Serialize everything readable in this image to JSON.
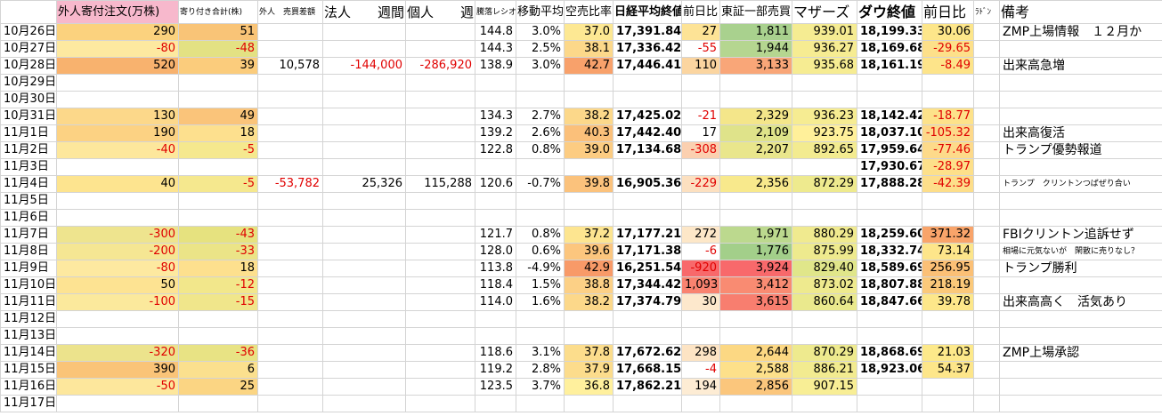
{
  "table": {
    "header": [
      null,
      "外人寄付注文(万株)",
      "寄り付き合計(株)",
      "外人　売買差額",
      "法人　　週間",
      "個人　　週間",
      "騰落レシオ",
      "移動平均",
      "空売比率",
      "日経平均終値",
      "前日比",
      "東証一部売買",
      "マザーズ",
      "ダウ終値",
      "前日比",
      "ﾗﾄﾞﾝ",
      "備考"
    ],
    "rows": [
      {
        "cells": [
          "10月26日",
          "290",
          "51",
          null,
          null,
          null,
          "144.8",
          "3.0%",
          "37.0",
          "17,391.84",
          "27",
          "1,811",
          "939.01",
          "18,199.33",
          "30.06",
          null,
          "ZMP上場情報　１２月か"
        ],
        "fills": {
          "1": "#fbd27e",
          "2": "#f9c477",
          "8": "#fde893",
          "10": "#fde396",
          "11": "#a9d18e",
          "12": "#f5ec92",
          "14": "#fde68a"
        }
      },
      {
        "cells": [
          "10月27日",
          "-80",
          "-48",
          null,
          null,
          null,
          "144.3",
          "2.5%",
          "38.1",
          "17,336.42",
          "-55",
          "1,944",
          "936.27",
          "18,169.68",
          "-29.65",
          null,
          null
        ],
        "fills": {
          "1": "#fde9a0",
          "2": "#e3e183",
          "8": "#fcd88a",
          "11": "#b5d690",
          "12": "#f6ec92",
          "14": "#fde08a"
        }
      },
      {
        "cells": [
          "10月28日",
          "520",
          "39",
          "10,578",
          "-144,000",
          "-286,920",
          "138.9",
          "3.0%",
          "42.7",
          "17,446.41",
          "110",
          "3,133",
          "935.68",
          "18,161.19",
          "-8.49",
          null,
          "出来高急増"
        ],
        "fills": {
          "1": "#f8b26e",
          "2": "#fbcc7c",
          "8": "#f8a16b",
          "10": "#fbd5a0",
          "11": "#f9a678",
          "12": "#f6ec92",
          "14": "#fde48a"
        }
      },
      {
        "cells": [
          "10月29日",
          null,
          null,
          null,
          null,
          null,
          null,
          null,
          null,
          null,
          null,
          null,
          null,
          null,
          null,
          null,
          null
        ],
        "fills": {}
      },
      {
        "cells": [
          "10月30日",
          null,
          null,
          null,
          null,
          null,
          null,
          null,
          null,
          null,
          null,
          null,
          null,
          null,
          null,
          null,
          null
        ],
        "fills": {}
      },
      {
        "cells": [
          "10月31日",
          "130",
          "49",
          null,
          null,
          null,
          "134.3",
          "2.7%",
          "38.2",
          "17,425.02",
          "-21",
          "2,329",
          "936.23",
          "18,142.42",
          "-18.77",
          null,
          null
        ],
        "fills": {
          "1": "#fcd88a",
          "2": "#fac47a",
          "8": "#fcd88a",
          "11": "#f4e68a",
          "12": "#f6ec92",
          "14": "#fde28a"
        }
      },
      {
        "cells": [
          "11月1日",
          "190",
          "18",
          null,
          null,
          null,
          "139.2",
          "2.6%",
          "40.3",
          "17,442.40",
          "17",
          "2,109",
          "923.75",
          "18,037.10",
          "-105.32",
          null,
          "出来高復活"
        ],
        "fills": {
          "1": "#fcd283",
          "2": "#fde08e",
          "8": "#fbc07a",
          "11": "#dfe38a",
          "12": "#fff09a",
          "14": "#fdd98a"
        }
      },
      {
        "cells": [
          "11月2日",
          "-40",
          "-5",
          null,
          null,
          null,
          "122.8",
          "0.8%",
          "39.0",
          "17,134.68",
          "-308",
          "2,207",
          "892.65",
          "17,959.64",
          "-77.46",
          null,
          "トランプ優勢報道"
        ],
        "fills": {
          "1": "#fde79c",
          "2": "#f5e88e",
          "8": "#fccc82",
          "10": "#fbd0b0",
          "11": "#e9e68c",
          "12": "#f3eb90",
          "14": "#fdda8a"
        }
      },
      {
        "cells": [
          "11月3日",
          null,
          null,
          null,
          null,
          null,
          null,
          null,
          null,
          null,
          null,
          null,
          null,
          "17,930.67",
          "-28.97",
          null,
          null
        ],
        "fills": {
          "14": "#fde08a"
        }
      },
      {
        "cells": [
          "11月4日",
          "40",
          "-5",
          "-53,782",
          "25,326",
          "115,288",
          "120.6",
          "-0.7%",
          "39.8",
          "16,905.36",
          "-229",
          "2,356",
          "872.29",
          "17,888.28",
          "-42.39",
          null,
          "トランプ　クリントンつばぜり合い"
        ],
        "fills": {
          "1": "#fde48f",
          "2": "#f5e88e",
          "8": "#fbc27c",
          "10": "#fce0c0",
          "11": "#f8e98c",
          "12": "#eeea8e",
          "14": "#fdde8a"
        }
      },
      {
        "cells": [
          "11月5日",
          null,
          null,
          null,
          null,
          null,
          null,
          null,
          null,
          null,
          null,
          null,
          null,
          null,
          null,
          null,
          null
        ],
        "fills": {}
      },
      {
        "cells": [
          "11月6日",
          null,
          null,
          null,
          null,
          null,
          null,
          null,
          null,
          null,
          null,
          null,
          null,
          null,
          null,
          null,
          null
        ],
        "fills": {}
      },
      {
        "cells": [
          "11月7日",
          "-300",
          "-43",
          null,
          null,
          null,
          "121.7",
          "0.8%",
          "37.2",
          "17,177.21",
          "272",
          "1,971",
          "880.29",
          "18,259.60",
          "371.32",
          null,
          "FBIクリントン追訴せず"
        ],
        "fills": {
          "1": "#eee48e",
          "2": "#e6e27f",
          "8": "#fde590",
          "10": "#fde7c8",
          "11": "#bcd98e",
          "12": "#f0ea8f",
          "14": "#f9a46a"
        }
      },
      {
        "cells": [
          "11月8日",
          "-200",
          "-33",
          null,
          null,
          null,
          "128.0",
          "0.6%",
          "39.6",
          "17,171.38",
          "-6",
          "1,776",
          "875.99",
          "18,332.74",
          "73.14",
          null,
          "相場に元気ないが　閑散に売りなし？"
        ],
        "fills": {
          "1": "#f5e693",
          "2": "#ebe487",
          "8": "#fcc67e",
          "11": "#a3cf8a",
          "12": "#eeea8e",
          "14": "#fde58a"
        }
      },
      {
        "cells": [
          "11月9日",
          "-80",
          "18",
          null,
          null,
          null,
          "113.8",
          "-4.9%",
          "42.9",
          "16,251.54",
          "-920",
          "3,924",
          "829.40",
          "18,589.69",
          "256.95",
          null,
          "トランプ勝利"
        ],
        "fills": {
          "1": "#fde9a0",
          "2": "#fde08e",
          "8": "#f89a68",
          "10": "#f8696b",
          "11": "#f8696b",
          "12": "#e0e68a",
          "14": "#fbc076"
        }
      },
      {
        "cells": [
          "11月10日",
          "50",
          "-12",
          null,
          null,
          null,
          "118.4",
          "1.5%",
          "38.8",
          "17,344.42",
          "1,093",
          "3,412",
          "873.02",
          "18,807.88",
          "218.19",
          null,
          null
        ],
        "fills": {
          "1": "#fde392",
          "2": "#f2e78b",
          "8": "#fcd086",
          "10": "#f98370",
          "11": "#f98b72",
          "12": "#eeea8e",
          "14": "#fbc97a"
        }
      },
      {
        "cells": [
          "11月11日",
          "-100",
          "-15",
          null,
          null,
          null,
          "114.0",
          "1.6%",
          "38.2",
          "17,374.79",
          "30",
          "3,615",
          "860.64",
          "18,847.66",
          "39.78",
          null,
          "出来高高く　活気あり"
        ],
        "fills": {
          "1": "#fbe99c",
          "2": "#f0e68b",
          "8": "#fcd88a",
          "10": "#fde8cc",
          "11": "#f87e6f",
          "12": "#eae98d",
          "14": "#fde78a"
        }
      },
      {
        "cells": [
          "11月12日",
          null,
          null,
          null,
          null,
          null,
          null,
          null,
          null,
          null,
          null,
          null,
          null,
          null,
          null,
          null,
          null
        ],
        "fills": {}
      },
      {
        "cells": [
          "11月13日",
          null,
          null,
          null,
          null,
          null,
          null,
          null,
          null,
          null,
          null,
          null,
          null,
          null,
          null,
          null,
          null
        ],
        "fills": {}
      },
      {
        "cells": [
          "11月14日",
          "-320",
          "-36",
          null,
          null,
          null,
          "118.6",
          "3.1%",
          "37.8",
          "17,672.62",
          "298",
          "2,644",
          "870.29",
          "18,868.69",
          "21.03",
          null,
          "ZMP上場承認"
        ],
        "fills": {
          "1": "#ece38c",
          "2": "#e8e384",
          "8": "#fcdd8c",
          "10": "#fde4c4",
          "11": "#fcd883",
          "12": "#eeea8e",
          "14": "#fde98a"
        }
      },
      {
        "cells": [
          "11月15日",
          "390",
          "6",
          null,
          null,
          null,
          "119.2",
          "2.8%",
          "37.9",
          "17,668.15",
          "-4",
          "2,588",
          "886.21",
          "18,923.06",
          "54.37",
          null,
          null
        ],
        "fills": {
          "1": "#fac478",
          "2": "#fbe08e",
          "8": "#fcdc8c",
          "11": "#fde08a",
          "12": "#f2eb90",
          "14": "#fde68a"
        }
      },
      {
        "cells": [
          "11月16日",
          "-50",
          "25",
          null,
          null,
          null,
          "123.5",
          "3.7%",
          "36.8",
          "17,862.21",
          "194",
          "2,856",
          "907.15",
          null,
          null,
          null,
          null
        ],
        "fills": {
          "1": "#fde79c",
          "2": "#fbd583",
          "8": "#fff09d",
          "10": "#fdecd4",
          "11": "#fbc67c",
          "12": "#f8ee95"
        }
      },
      {
        "cells": [
          "11月17日",
          null,
          null,
          null,
          null,
          null,
          null,
          null,
          null,
          null,
          null,
          null,
          null,
          null,
          null,
          null,
          null
        ],
        "fills": {}
      }
    ]
  }
}
